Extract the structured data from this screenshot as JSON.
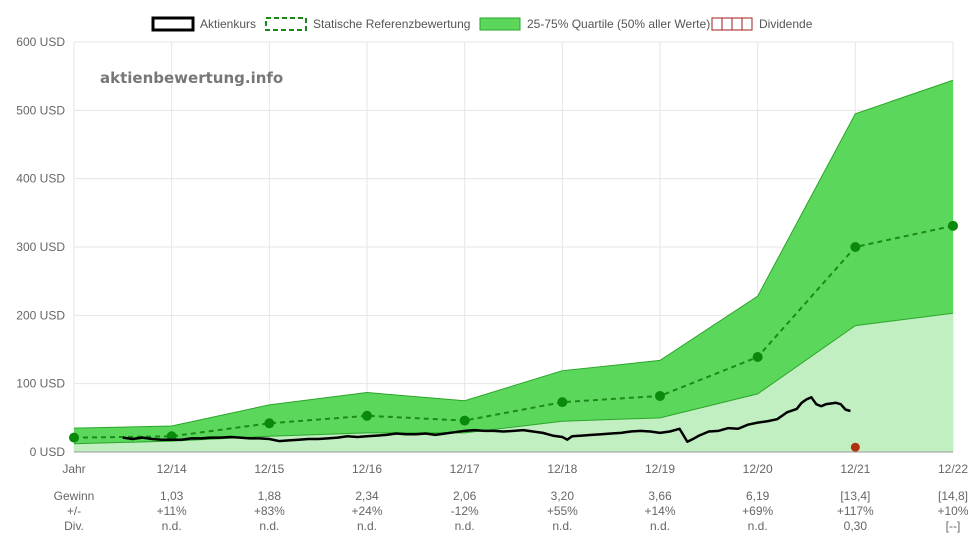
{
  "chart_data": {
    "type": "line",
    "watermark": "aktienbewertung.info",
    "legend": [
      {
        "key": "price",
        "label": "Aktienkurs"
      },
      {
        "key": "reference",
        "label": "Statische Referenzbewertung"
      },
      {
        "key": "band",
        "label": "25-75% Quartile (50% aller Werte)"
      },
      {
        "key": "dividend",
        "label": "Dividende"
      }
    ],
    "colors": {
      "price": "#000000",
      "reference": "#1b8a1b",
      "reference_point": "#0a8a0a",
      "band_fill": "#5bd85b",
      "band_stroke": "#2aa52a",
      "lower_fill": "#c2efc2",
      "dividend_fill": "#b03010",
      "dividend_stroke": "#a01c1c",
      "grid": "#e6e6e6",
      "text": "#666666"
    },
    "ylim": [
      0,
      600
    ],
    "yticks": [
      {
        "value": 0,
        "label": "0 USD"
      },
      {
        "value": 100,
        "label": "100 USD"
      },
      {
        "value": 200,
        "label": "200 USD"
      },
      {
        "value": 300,
        "label": "300 USD"
      },
      {
        "value": 400,
        "label": "400 USD"
      },
      {
        "value": 500,
        "label": "500 USD"
      },
      {
        "value": 600,
        "label": "600 USD"
      }
    ],
    "x_first_label": "Jahr",
    "x": [
      0,
      1,
      2,
      3,
      4,
      5,
      6,
      7,
      8,
      9
    ],
    "xticks": [
      "",
      "12/14",
      "12/15",
      "12/16",
      "12/17",
      "12/18",
      "12/19",
      "12/20",
      "12/21",
      "12/22"
    ],
    "reference_values": [
      21,
      23,
      42,
      53,
      46,
      73,
      82,
      139,
      300,
      331
    ],
    "band_lower": [
      12,
      16,
      23,
      28,
      28,
      45,
      50,
      85,
      185,
      203
    ],
    "band_upper": [
      35,
      38,
      69,
      87,
      75,
      119,
      134,
      228,
      495,
      544
    ],
    "dividends": [
      {
        "x": 8,
        "value": 7
      }
    ],
    "price": [
      [
        0.5,
        21
      ],
      [
        0.6,
        19
      ],
      [
        0.7,
        21
      ],
      [
        0.8,
        19
      ],
      [
        0.9,
        18
      ],
      [
        1.0,
        18
      ],
      [
        1.1,
        18
      ],
      [
        1.2,
        20
      ],
      [
        1.3,
        20
      ],
      [
        1.4,
        21
      ],
      [
        1.5,
        21
      ],
      [
        1.6,
        22
      ],
      [
        1.7,
        21
      ],
      [
        1.8,
        20
      ],
      [
        1.9,
        20
      ],
      [
        2.0,
        19
      ],
      [
        2.1,
        16
      ],
      [
        2.2,
        17
      ],
      [
        2.3,
        18
      ],
      [
        2.4,
        19
      ],
      [
        2.5,
        19
      ],
      [
        2.6,
        20
      ],
      [
        2.7,
        21
      ],
      [
        2.8,
        23
      ],
      [
        2.9,
        22
      ],
      [
        3.0,
        23
      ],
      [
        3.1,
        24
      ],
      [
        3.2,
        25
      ],
      [
        3.3,
        27
      ],
      [
        3.4,
        26
      ],
      [
        3.5,
        26
      ],
      [
        3.6,
        27
      ],
      [
        3.7,
        25
      ],
      [
        3.8,
        27
      ],
      [
        3.9,
        29
      ],
      [
        4.0,
        31
      ],
      [
        4.1,
        32
      ],
      [
        4.2,
        31
      ],
      [
        4.3,
        31
      ],
      [
        4.4,
        30
      ],
      [
        4.5,
        31
      ],
      [
        4.6,
        32
      ],
      [
        4.7,
        30
      ],
      [
        4.8,
        28
      ],
      [
        4.9,
        24
      ],
      [
        5.0,
        22
      ],
      [
        5.05,
        18
      ],
      [
        5.1,
        23
      ],
      [
        5.2,
        24
      ],
      [
        5.3,
        25
      ],
      [
        5.4,
        26
      ],
      [
        5.5,
        27
      ],
      [
        5.6,
        28
      ],
      [
        5.7,
        30
      ],
      [
        5.8,
        31
      ],
      [
        5.9,
        30
      ],
      [
        6.0,
        28
      ],
      [
        6.1,
        30
      ],
      [
        6.2,
        34
      ],
      [
        6.28,
        15
      ],
      [
        6.35,
        20
      ],
      [
        6.4,
        24
      ],
      [
        6.5,
        30
      ],
      [
        6.6,
        31
      ],
      [
        6.7,
        35
      ],
      [
        6.8,
        34
      ],
      [
        6.9,
        40
      ],
      [
        7.0,
        43
      ],
      [
        7.1,
        45
      ],
      [
        7.2,
        48
      ],
      [
        7.3,
        58
      ],
      [
        7.4,
        63
      ],
      [
        7.45,
        72
      ],
      [
        7.5,
        77
      ],
      [
        7.55,
        80
      ],
      [
        7.6,
        70
      ],
      [
        7.65,
        67
      ],
      [
        7.7,
        70
      ],
      [
        7.75,
        71
      ],
      [
        7.8,
        72
      ],
      [
        7.85,
        70
      ],
      [
        7.9,
        62
      ],
      [
        7.95,
        60
      ]
    ],
    "table": {
      "row_labels": [
        "Gewinn",
        "+/-",
        "Div."
      ],
      "columns": [
        {
          "gewinn": "1,03",
          "change": "+11%",
          "div": "n.d."
        },
        {
          "gewinn": "1,88",
          "change": "+83%",
          "div": "n.d."
        },
        {
          "gewinn": "2,34",
          "change": "+24%",
          "div": "n.d."
        },
        {
          "gewinn": "2,06",
          "change": "-12%",
          "div": "n.d."
        },
        {
          "gewinn": "3,20",
          "change": "+55%",
          "div": "n.d."
        },
        {
          "gewinn": "3,66",
          "change": "+14%",
          "div": "n.d."
        },
        {
          "gewinn": "6,19",
          "change": "+69%",
          "div": "n.d."
        },
        {
          "gewinn": "[13,4]",
          "change": "+117%",
          "div": "0,30"
        },
        {
          "gewinn": "[14,8]",
          "change": "+10%",
          "div": "[--]"
        }
      ]
    }
  }
}
